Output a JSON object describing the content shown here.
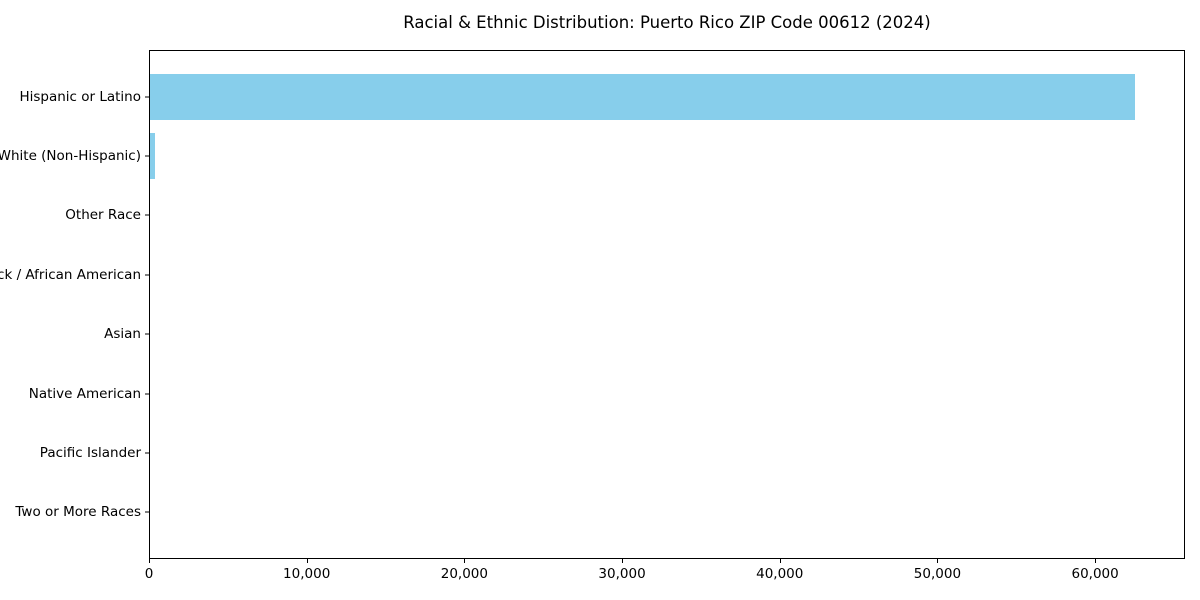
{
  "chart_data": {
    "type": "bar",
    "orientation": "horizontal",
    "title": "Racial & Ethnic Distribution: Puerto Rico ZIP Code 00612 (2024)",
    "categories": [
      "Hispanic or Latino",
      "White (Non-Hispanic)",
      "Other Race",
      "Black / African American",
      "Asian",
      "Native American",
      "Pacific Islander",
      "Two or More Races"
    ],
    "values": [
      62600,
      300,
      0,
      0,
      0,
      0,
      0,
      0
    ],
    "xlabel": "",
    "ylabel": "",
    "xlim": [
      0,
      65700
    ],
    "xticks": [
      0,
      10000,
      20000,
      30000,
      40000,
      50000,
      60000
    ],
    "xtick_labels": [
      "0",
      "10,000",
      "20,000",
      "30,000",
      "40,000",
      "50,000",
      "60,000"
    ],
    "bar_color": "#87CEEB",
    "axis_color": "#000000",
    "background_color": "#ffffff",
    "grid": false,
    "legend": "none"
  }
}
